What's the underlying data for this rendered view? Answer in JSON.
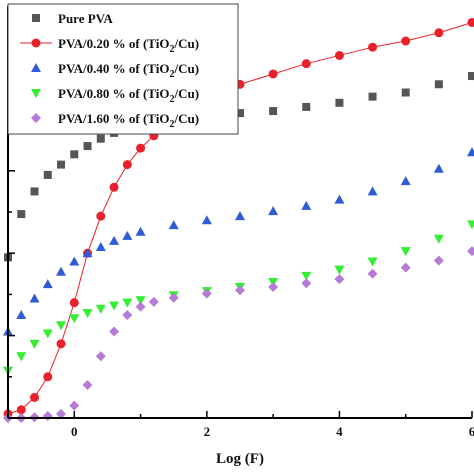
{
  "chart_data": {
    "type": "scatter",
    "xlabel": "Log (F)",
    "ylabel": "",
    "xlim": [
      -1,
      6
    ],
    "ylim": [
      0,
      10
    ],
    "x_ticks": [
      "0",
      "2",
      "4",
      "6"
    ],
    "legend_position": "top-left",
    "series": [
      {
        "name": "Pure PVA",
        "marker": "square",
        "color": "#555555",
        "line": false,
        "x": [
          -1.0,
          -0.8,
          -0.6,
          -0.4,
          -0.2,
          0.0,
          0.2,
          0.4,
          0.6,
          0.8,
          1.0,
          1.2,
          1.4,
          1.6,
          1.8,
          2.0,
          2.5,
          3.0,
          3.5,
          4.0,
          4.5,
          5.0,
          5.5,
          6.0
        ],
        "y": [
          3.9,
          4.95,
          5.5,
          5.9,
          6.15,
          6.4,
          6.6,
          6.78,
          6.92,
          7.05,
          7.15,
          7.22,
          7.27,
          7.3,
          7.32,
          7.35,
          7.4,
          7.45,
          7.55,
          7.65,
          7.8,
          7.9,
          8.1,
          8.3
        ]
      },
      {
        "name": "PVA/0.20 % of (TiO2/Cu)",
        "marker": "circle",
        "color": "#e8212a",
        "line": true,
        "x": [
          -1.0,
          -0.8,
          -0.6,
          -0.4,
          -0.2,
          0.0,
          0.2,
          0.4,
          0.6,
          0.8,
          1.0,
          1.2,
          1.4,
          1.6,
          1.8,
          2.0,
          2.5,
          3.0,
          3.5,
          4.0,
          4.5,
          5.0,
          5.5,
          6.0
        ],
        "y": [
          0.1,
          0.2,
          0.5,
          1.0,
          1.8,
          2.8,
          4.0,
          4.9,
          5.6,
          6.15,
          6.55,
          6.85,
          7.1,
          7.35,
          7.55,
          7.75,
          8.1,
          8.35,
          8.6,
          8.8,
          9.0,
          9.15,
          9.35,
          9.6
        ]
      },
      {
        "name": "PVA/0.40 % of (TiO2/Cu)",
        "marker": "triangle-up",
        "color": "#2f5bd6",
        "line": false,
        "x": [
          -1.0,
          -0.8,
          -0.6,
          -0.4,
          -0.2,
          0.0,
          0.2,
          0.4,
          0.6,
          0.8,
          1.0,
          1.5,
          2.0,
          2.5,
          3.0,
          3.5,
          4.0,
          4.5,
          5.0,
          5.5,
          6.0
        ],
        "y": [
          2.1,
          2.5,
          2.9,
          3.25,
          3.55,
          3.8,
          4.0,
          4.15,
          4.3,
          4.42,
          4.52,
          4.68,
          4.8,
          4.9,
          5.02,
          5.15,
          5.3,
          5.5,
          5.75,
          6.05,
          6.45
        ]
      },
      {
        "name": "PVA/0.80 % of (TiO2/Cu)",
        "marker": "triangle-down",
        "color": "#33ee33",
        "line": false,
        "x": [
          -1.0,
          -0.8,
          -0.6,
          -0.4,
          -0.2,
          0.0,
          0.2,
          0.4,
          0.6,
          0.8,
          1.0,
          1.5,
          2.0,
          2.5,
          3.0,
          3.5,
          4.0,
          4.5,
          5.0,
          5.5,
          6.0
        ],
        "y": [
          1.15,
          1.5,
          1.8,
          2.05,
          2.25,
          2.42,
          2.55,
          2.65,
          2.73,
          2.8,
          2.86,
          2.98,
          3.08,
          3.18,
          3.3,
          3.45,
          3.6,
          3.8,
          4.05,
          4.35,
          4.7
        ]
      },
      {
        "name": "PVA/1.60 % of (TiO2/Cu)",
        "marker": "diamond",
        "color": "#b57bd6",
        "line": false,
        "x": [
          -1.0,
          -0.8,
          -0.6,
          -0.4,
          -0.2,
          0.0,
          0.2,
          0.4,
          0.6,
          0.8,
          1.0,
          1.2,
          1.5,
          2.0,
          2.5,
          3.0,
          3.5,
          4.0,
          4.5,
          5.0,
          5.5,
          6.0
        ],
        "y": [
          0.0,
          0.0,
          0.02,
          0.05,
          0.1,
          0.3,
          0.8,
          1.5,
          2.1,
          2.5,
          2.7,
          2.82,
          2.92,
          3.02,
          3.1,
          3.18,
          3.27,
          3.37,
          3.5,
          3.65,
          3.82,
          4.05
        ]
      }
    ]
  }
}
